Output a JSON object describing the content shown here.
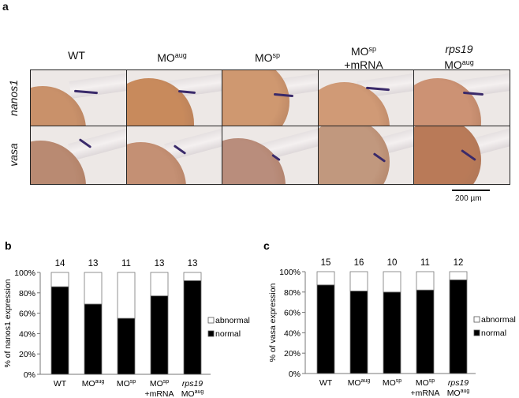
{
  "panel_a": {
    "label": "a",
    "columns": [
      {
        "line1": "WT",
        "sup1": "",
        "line2": "",
        "sup2": "",
        "italic1": false
      },
      {
        "line1": "MO",
        "sup1": "aug",
        "line2": "",
        "sup2": "",
        "italic1": false
      },
      {
        "line1": "MO",
        "sup1": "sp",
        "line2": "",
        "sup2": "",
        "italic1": false
      },
      {
        "line1": "MO",
        "sup1": "sp",
        "line2": "+mRNA",
        "sup2": "",
        "italic1": false
      },
      {
        "line1": "rps19",
        "sup1": "",
        "line2": "MO",
        "sup2": "aug",
        "italic1": true
      }
    ],
    "rows": [
      "nanos1",
      "vasa"
    ],
    "scale_bar": "200 µm"
  },
  "chart_data": [
    {
      "panel": "b",
      "type": "bar",
      "stacked": true,
      "categories": [
        {
          "line1": "WT",
          "sup1": "",
          "line2": "",
          "sup2": "",
          "italic1": false
        },
        {
          "line1": "MO",
          "sup1": "aug",
          "line2": "",
          "sup2": "",
          "italic1": false
        },
        {
          "line1": "MO",
          "sup1": "sp",
          "line2": "",
          "sup2": "",
          "italic1": false
        },
        {
          "line1": "MO",
          "sup1": "sp",
          "line2": "+mRNA",
          "sup2": "",
          "italic1": false
        },
        {
          "line1": "rps19",
          "sup1": "",
          "line2": "MO",
          "sup2": "aug",
          "italic1": true
        }
      ],
      "n_labels": [
        "14",
        "13",
        "11",
        "13",
        "13"
      ],
      "series": [
        {
          "name": "normal",
          "color": "#000000",
          "values": [
            86,
            69,
            55,
            77,
            92
          ]
        },
        {
          "name": "abnormal",
          "color": "#ffffff",
          "values": [
            14,
            31,
            45,
            23,
            8
          ]
        }
      ],
      "ylabel": "% of nanos1 expression",
      "yticks": [
        "0%",
        "20%",
        "40%",
        "60%",
        "80%",
        "100%"
      ],
      "ylim": [
        0,
        100
      ],
      "legend": "right",
      "legend_entries": [
        "abnormal",
        "normal"
      ]
    },
    {
      "panel": "c",
      "type": "bar",
      "stacked": true,
      "categories": [
        {
          "line1": "WT",
          "sup1": "",
          "line2": "",
          "sup2": "",
          "italic1": false
        },
        {
          "line1": "MO",
          "sup1": "aug",
          "line2": "",
          "sup2": "",
          "italic1": false
        },
        {
          "line1": "MO",
          "sup1": "sp",
          "line2": "",
          "sup2": "",
          "italic1": false
        },
        {
          "line1": "MO",
          "sup1": "sp",
          "line2": "+mRNA",
          "sup2": "",
          "italic1": false
        },
        {
          "line1": "rps19",
          "sup1": "",
          "line2": "MO",
          "sup2": "aug",
          "italic1": true
        }
      ],
      "n_labels": [
        "15",
        "16",
        "10",
        "11",
        "12"
      ],
      "series": [
        {
          "name": "normal",
          "color": "#000000",
          "values": [
            87,
            81,
            80,
            82,
            92
          ]
        },
        {
          "name": "abnormal",
          "color": "#ffffff",
          "values": [
            13,
            19,
            20,
            18,
            8
          ]
        }
      ],
      "ylabel": "% of vasa expression",
      "yticks": [
        "0%",
        "20%",
        "40%",
        "60%",
        "80%",
        "100%"
      ],
      "ylim": [
        0,
        100
      ],
      "legend": "right",
      "legend_entries": [
        "abnormal",
        "normal"
      ]
    }
  ]
}
